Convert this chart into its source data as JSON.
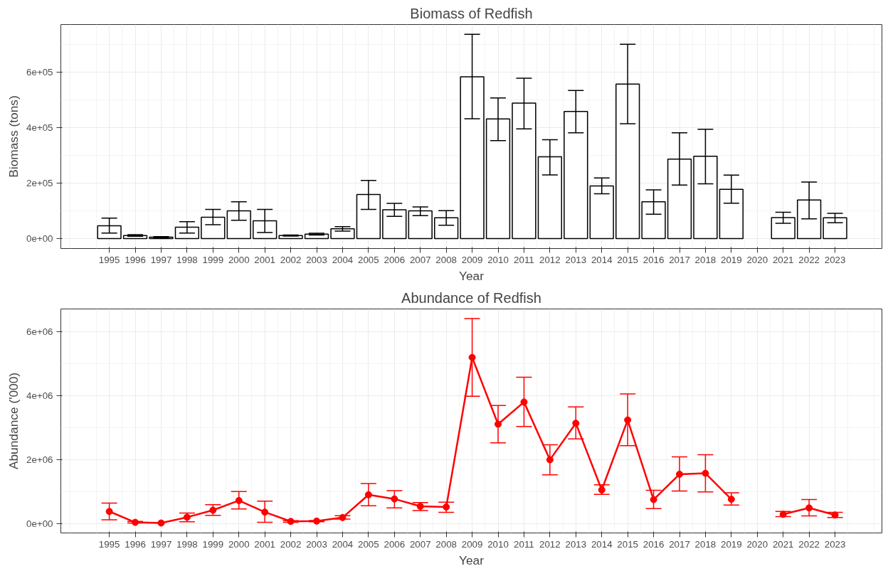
{
  "chart_data": [
    {
      "type": "bar",
      "title": "Biomass of Redfish",
      "xlabel": "Year",
      "ylabel": "Biomass (tons)",
      "categories": [
        "1995",
        "1996",
        "1997",
        "1998",
        "1999",
        "2000",
        "2001",
        "2002",
        "2003",
        "2004",
        "2005",
        "2006",
        "2007",
        "2008",
        "2009",
        "2010",
        "2011",
        "2012",
        "2013",
        "2014",
        "2015",
        "2016",
        "2017",
        "2018",
        "2019",
        "2020",
        "2021",
        "2022",
        "2023"
      ],
      "series": [
        {
          "color": "#ffffff",
          "values": [
            46000,
            11000,
            5000,
            41000,
            77000,
            100000,
            64000,
            11000,
            16000,
            35000,
            159000,
            104000,
            100000,
            75000,
            584000,
            432000,
            489000,
            295000,
            459000,
            190000,
            558000,
            133000,
            287000,
            297000,
            178000,
            null,
            76000,
            139000,
            75000
          ],
          "errors": [
            [
              20000,
              74000
            ],
            [
              8000,
              14000
            ],
            [
              3000,
              7000
            ],
            [
              20000,
              61000
            ],
            [
              50000,
              105000
            ],
            [
              66000,
              133000
            ],
            [
              22000,
              105000
            ],
            [
              9000,
              13000
            ],
            [
              13000,
              19000
            ],
            [
              27000,
              43000
            ],
            [
              105000,
              210000
            ],
            [
              80000,
              127000
            ],
            [
              83000,
              114000
            ],
            [
              48000,
              101000
            ],
            [
              433000,
              738000
            ],
            [
              354000,
              508000
            ],
            [
              396000,
              579000
            ],
            [
              230000,
              357000
            ],
            [
              382000,
              535000
            ],
            [
              162000,
              219000
            ],
            [
              415000,
              702000
            ],
            [
              88000,
              176000
            ],
            [
              193000,
              382000
            ],
            [
              198000,
              395000
            ],
            [
              128000,
              229000
            ],
            null,
            [
              55000,
              95000
            ],
            [
              71000,
              204000
            ],
            [
              57000,
              91000
            ]
          ]
        }
      ],
      "ylim": [
        -36000,
        773000
      ],
      "yticks": [
        {
          "value": 0,
          "label": "0e+00"
        },
        {
          "value": 200000,
          "label": "2e+05"
        },
        {
          "value": 400000,
          "label": "4e+05"
        },
        {
          "value": 600000,
          "label": "6e+05"
        }
      ],
      "grid": true
    },
    {
      "type": "line",
      "title": "Abundance of Redfish",
      "xlabel": "Year",
      "ylabel": "Abundance ('000)",
      "categories": [
        "1995",
        "1996",
        "1997",
        "1998",
        "1999",
        "2000",
        "2001",
        "2002",
        "2003",
        "2004",
        "2005",
        "2006",
        "2007",
        "2008",
        "2009",
        "2010",
        "2011",
        "2012",
        "2013",
        "2014",
        "2015",
        "2016",
        "2017",
        "2018",
        "2019",
        "2020",
        "2021",
        "2022",
        "2023"
      ],
      "series": [
        {
          "color": "#ff0000",
          "values": [
            390000,
            50000,
            30000,
            210000,
            430000,
            730000,
            370000,
            80000,
            90000,
            200000,
            910000,
            780000,
            550000,
            530000,
            5190000,
            3110000,
            3800000,
            2000000,
            3140000,
            1060000,
            3240000,
            760000,
            1550000,
            1580000,
            770000,
            null,
            300000,
            500000,
            280000
          ],
          "errors": [
            [
              130000,
              650000
            ],
            [
              30000,
              80000
            ],
            null,
            [
              70000,
              340000
            ],
            [
              270000,
              600000
            ],
            [
              470000,
              1010000
            ],
            [
              50000,
              710000
            ],
            [
              50000,
              100000
            ],
            [
              70000,
              110000
            ],
            [
              150000,
              260000
            ],
            [
              570000,
              1260000
            ],
            [
              500000,
              1040000
            ],
            [
              420000,
              670000
            ],
            [
              360000,
              680000
            ],
            [
              3980000,
              6400000
            ],
            [
              2530000,
              3690000
            ],
            [
              3040000,
              4570000
            ],
            [
              1530000,
              2470000
            ],
            [
              2650000,
              3650000
            ],
            [
              920000,
              1220000
            ],
            [
              2440000,
              4050000
            ],
            [
              480000,
              1050000
            ],
            [
              1030000,
              2090000
            ],
            [
              1000000,
              2160000
            ],
            [
              590000,
              970000
            ],
            null,
            [
              230000,
              390000
            ],
            [
              250000,
              760000
            ],
            [
              200000,
              360000
            ]
          ]
        }
      ],
      "ylim": [
        -280000,
        6700000
      ],
      "yticks": [
        {
          "value": 0,
          "label": "0e+00"
        },
        {
          "value": 2000000,
          "label": "2e+06"
        },
        {
          "value": 4000000,
          "label": "4e+06"
        },
        {
          "value": 6000000,
          "label": "6e+06"
        }
      ],
      "grid": true,
      "marker": "circle",
      "line_style": "solid"
    }
  ]
}
